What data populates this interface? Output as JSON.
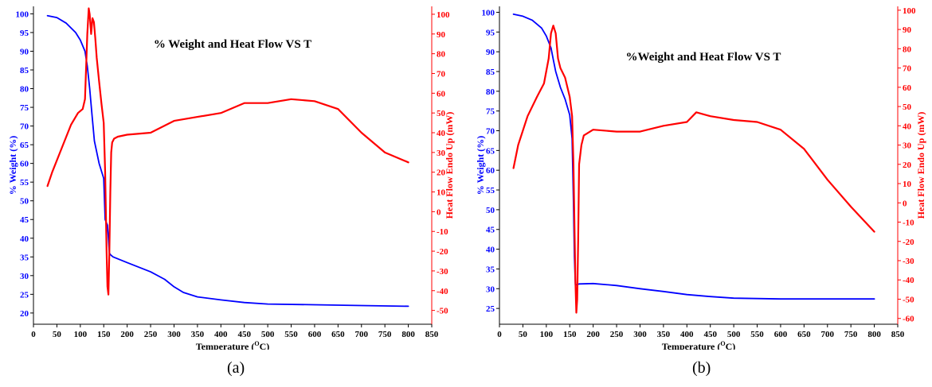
{
  "captions": [
    "(a)",
    "(b)"
  ],
  "chart_data": [
    {
      "type": "line",
      "title": "% Weight and Heat Flow VS T",
      "xlabel": "Temperature (",
      "xlabel_sup": "O",
      "xlabel_end": "C)",
      "ylabel_left": "% Weight (%)",
      "ylabel_right": "Heat Flow Endo Up (mW)",
      "xlim": [
        0,
        850
      ],
      "ylim_left": [
        17,
        102
      ],
      "ylim_right": [
        -57,
        104
      ],
      "x_ticks": [
        0,
        50,
        100,
        150,
        200,
        250,
        300,
        350,
        400,
        450,
        500,
        550,
        600,
        650,
        700,
        750,
        800,
        850
      ],
      "y_left_ticks": [
        20,
        25,
        30,
        35,
        40,
        45,
        50,
        55,
        60,
        65,
        70,
        75,
        80,
        85,
        90,
        95,
        100
      ],
      "y_right_ticks": [
        -50,
        -40,
        -30,
        -20,
        -10,
        0,
        10,
        20,
        30,
        40,
        50,
        60,
        70,
        80,
        90,
        100
      ],
      "colors": {
        "weight": "#0000ff",
        "heat": "#ff0000",
        "axis_left": "#0000ff",
        "axis_right": "#ff0000"
      },
      "series": [
        {
          "key": "weight",
          "axis": "left",
          "x": [
            30,
            50,
            70,
            90,
            100,
            110,
            115,
            120,
            125,
            130,
            140,
            145,
            150,
            153,
            156,
            158,
            160,
            162,
            165,
            170,
            200,
            250,
            280,
            300,
            320,
            350,
            400,
            450,
            500,
            600,
            700,
            800
          ],
          "y": [
            99.5,
            99,
            97.5,
            95,
            93,
            90,
            86,
            80,
            73,
            66,
            60,
            58,
            56,
            45,
            44,
            43.5,
            40,
            36,
            35.5,
            35,
            33.5,
            31,
            29,
            27,
            25.5,
            24.3,
            23.5,
            22.8,
            22.4,
            22.2,
            22,
            21.8
          ]
        },
        {
          "key": "heat",
          "axis": "right",
          "x": [
            30,
            40,
            60,
            80,
            95,
            105,
            110,
            115,
            118,
            120,
            123,
            126,
            129,
            132,
            135,
            140,
            145,
            150,
            153,
            156,
            158,
            160,
            162,
            164,
            166,
            168,
            172,
            180,
            200,
            250,
            300,
            350,
            400,
            450,
            500,
            550,
            600,
            650,
            700,
            750,
            800
          ],
          "y": [
            13,
            20,
            32,
            44,
            50,
            52,
            57,
            90,
            103,
            100,
            90,
            98,
            96,
            88,
            78,
            66,
            55,
            45,
            20,
            -20,
            -38,
            -42,
            -20,
            10,
            30,
            35,
            37,
            38,
            39,
            40,
            46,
            48,
            50,
            55,
            55,
            57,
            56,
            52,
            40,
            30,
            25
          ]
        }
      ]
    },
    {
      "type": "line",
      "title": "%Weight and Heat Flow VS T",
      "xlabel": "Temperature (",
      "xlabel_sup": "O",
      "xlabel_end": "C)",
      "ylabel_left": "% Weight (%)",
      "ylabel_right": "Heat Flow Endo Up (mW)",
      "xlim": [
        0,
        850
      ],
      "ylim_left": [
        21,
        101.5
      ],
      "ylim_right": [
        -63,
        102
      ],
      "x_ticks": [
        0,
        50,
        100,
        150,
        200,
        250,
        300,
        350,
        400,
        450,
        500,
        550,
        600,
        650,
        700,
        750,
        800,
        850
      ],
      "y_left_ticks": [
        25,
        30,
        35,
        40,
        45,
        50,
        55,
        60,
        65,
        70,
        75,
        80,
        85,
        90,
        95,
        100
      ],
      "y_right_ticks": [
        -60,
        -50,
        -40,
        -30,
        -20,
        -10,
        0,
        10,
        20,
        30,
        40,
        50,
        60,
        70,
        80,
        90,
        100
      ],
      "colors": {
        "weight": "#0000ff",
        "heat": "#ff0000",
        "axis_left": "#0000ff",
        "axis_right": "#ff0000"
      },
      "series": [
        {
          "key": "weight",
          "axis": "left",
          "x": [
            30,
            50,
            70,
            90,
            100,
            110,
            115,
            120,
            130,
            140,
            150,
            155,
            158,
            160,
            162,
            165,
            170,
            200,
            250,
            300,
            350,
            400,
            450,
            500,
            600,
            700,
            800
          ],
          "y": [
            99.5,
            99,
            98,
            96,
            94,
            91,
            88,
            85,
            81,
            78,
            74,
            68,
            52,
            38,
            31,
            31,
            31.2,
            31.3,
            30.8,
            30,
            29.3,
            28.5,
            28,
            27.6,
            27.4,
            27.4,
            27.4
          ]
        },
        {
          "key": "heat",
          "axis": "right",
          "x": [
            30,
            40,
            60,
            80,
            95,
            105,
            110,
            115,
            120,
            125,
            130,
            140,
            150,
            155,
            158,
            160,
            162,
            164,
            166,
            168,
            170,
            175,
            180,
            200,
            250,
            300,
            350,
            400,
            420,
            450,
            500,
            550,
            600,
            650,
            700,
            750,
            800
          ],
          "y": [
            18,
            30,
            45,
            55,
            62,
            75,
            88,
            92,
            88,
            75,
            70,
            65,
            55,
            45,
            20,
            -10,
            -40,
            -57,
            -50,
            -20,
            20,
            30,
            35,
            38,
            37,
            37,
            40,
            42,
            47,
            45,
            43,
            42,
            38,
            28,
            12,
            -2,
            -15
          ]
        }
      ]
    }
  ]
}
